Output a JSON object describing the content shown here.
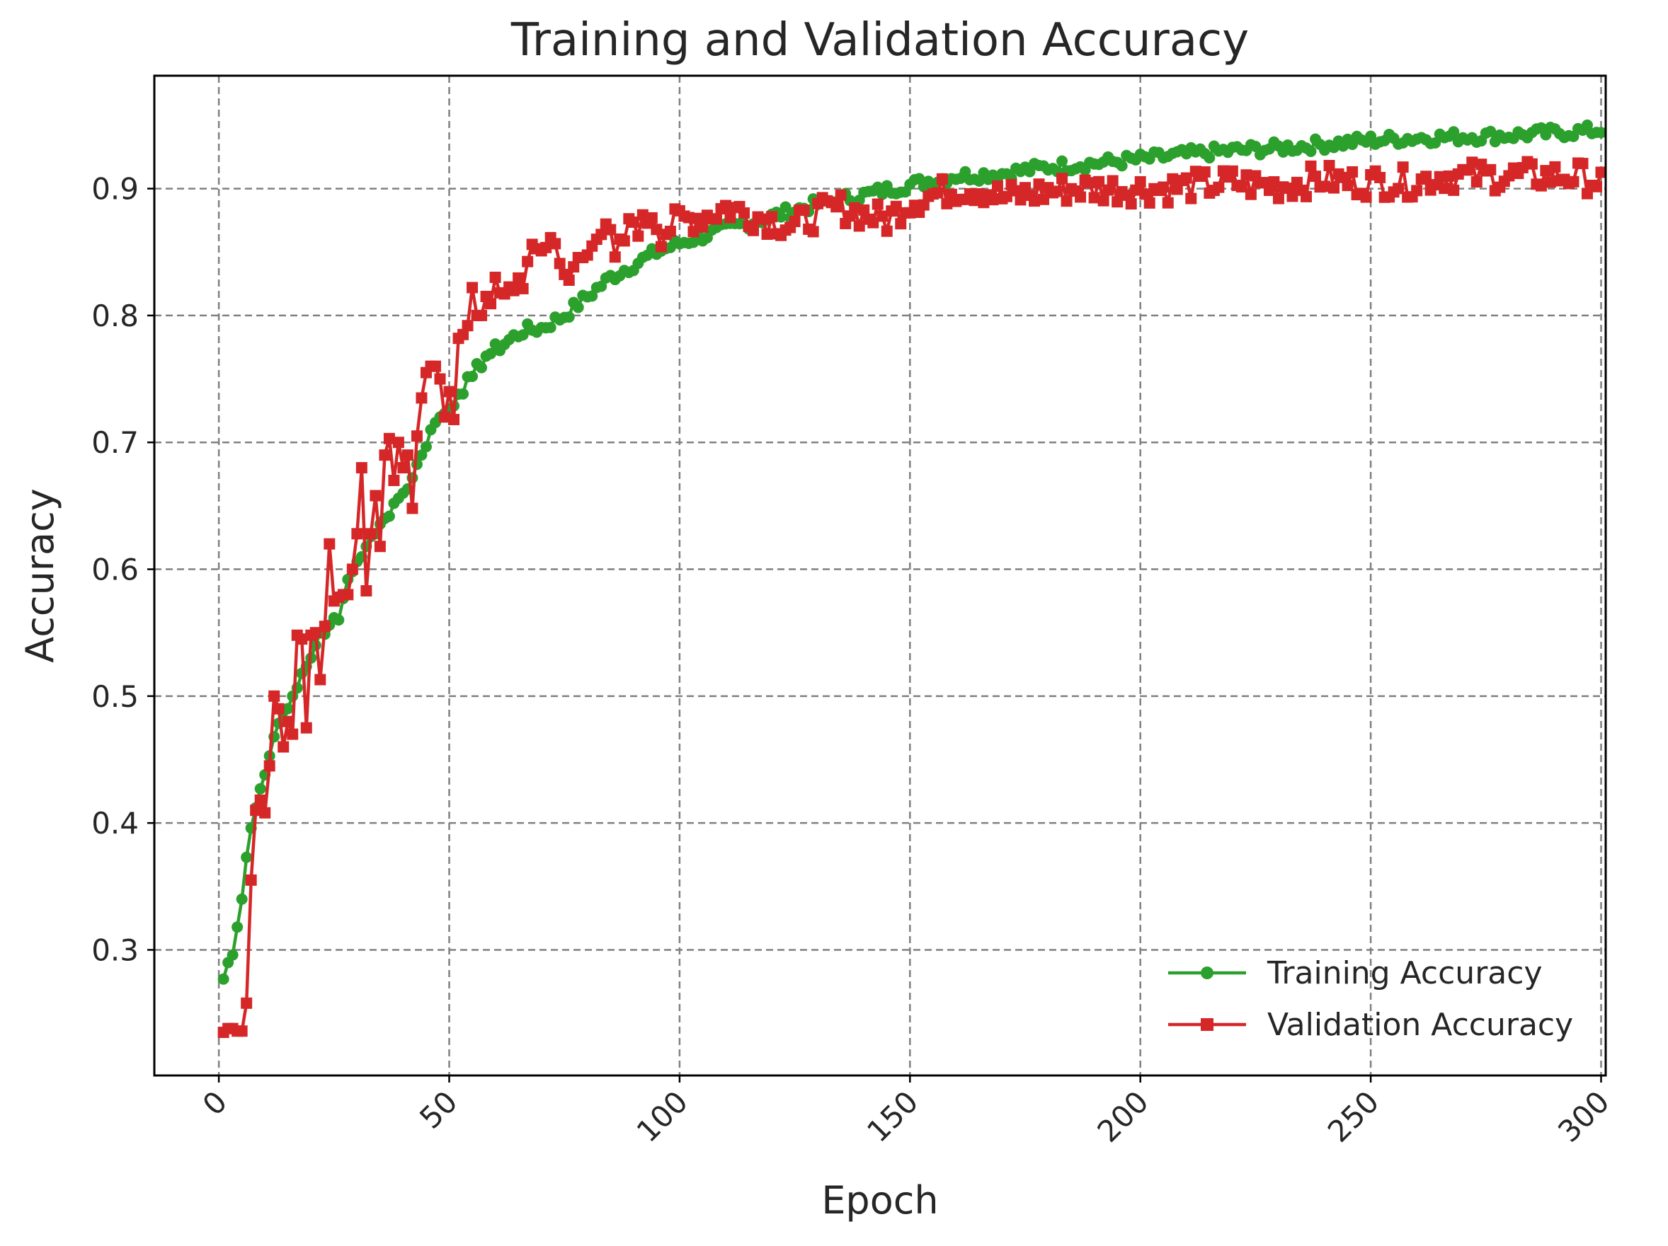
{
  "chart_data": {
    "type": "line",
    "title": "Training and Validation Accuracy",
    "xlabel": "Epoch",
    "ylabel": "Accuracy",
    "xlim": [
      -14,
      301
    ],
    "ylim": [
      0.201,
      0.989
    ],
    "xticks": [
      0,
      50,
      100,
      150,
      200,
      250,
      300
    ],
    "xtick_labels": [
      "0",
      "50",
      "100",
      "150",
      "200",
      "250",
      "300"
    ],
    "xtick_rotation": -45,
    "yticks": [
      0.3,
      0.4,
      0.5,
      0.6,
      0.7,
      0.8,
      0.9
    ],
    "ytick_labels": [
      "0.3",
      "0.4",
      "0.5",
      "0.6",
      "0.7",
      "0.8",
      "0.9"
    ],
    "grid": true,
    "legend_position": "lower-right",
    "series": [
      {
        "name": "Training Accuracy",
        "color": "#2ca02c",
        "marker": "circle",
        "anchors": [
          [
            1,
            0.277
          ],
          [
            2,
            0.29
          ],
          [
            3,
            0.296
          ],
          [
            4,
            0.318
          ],
          [
            5,
            0.34
          ],
          [
            6,
            0.373
          ],
          [
            7,
            0.396
          ],
          [
            8,
            0.412
          ],
          [
            9,
            0.427
          ],
          [
            10,
            0.438
          ],
          [
            12,
            0.468
          ],
          [
            14,
            0.488
          ],
          [
            16,
            0.5
          ],
          [
            18,
            0.518
          ],
          [
            20,
            0.53
          ],
          [
            22,
            0.55
          ],
          [
            24,
            0.556
          ],
          [
            26,
            0.56
          ],
          [
            28,
            0.592
          ],
          [
            30,
            0.606
          ],
          [
            32,
            0.618
          ],
          [
            34,
            0.628
          ],
          [
            36,
            0.64
          ],
          [
            38,
            0.652
          ],
          [
            40,
            0.66
          ],
          [
            42,
            0.672
          ],
          [
            44,
            0.69
          ],
          [
            46,
            0.71
          ],
          [
            48,
            0.72
          ],
          [
            50,
            0.726
          ],
          [
            52,
            0.738
          ],
          [
            55,
            0.752
          ],
          [
            58,
            0.768
          ],
          [
            62,
            0.778
          ],
          [
            66,
            0.788
          ],
          [
            70,
            0.79
          ],
          [
            75,
            0.8
          ],
          [
            80,
            0.815
          ],
          [
            85,
            0.83
          ],
          [
            90,
            0.84
          ],
          [
            95,
            0.85
          ],
          [
            100,
            0.857
          ],
          [
            110,
            0.868
          ],
          [
            120,
            0.878
          ],
          [
            130,
            0.888
          ],
          [
            140,
            0.895
          ],
          [
            150,
            0.903
          ],
          [
            160,
            0.91
          ],
          [
            170,
            0.912
          ],
          [
            180,
            0.917
          ],
          [
            190,
            0.92
          ],
          [
            200,
            0.923
          ],
          [
            210,
            0.927
          ],
          [
            220,
            0.93
          ],
          [
            230,
            0.932
          ],
          [
            240,
            0.935
          ],
          [
            250,
            0.938
          ],
          [
            260,
            0.94
          ],
          [
            270,
            0.941
          ],
          [
            280,
            0.942
          ],
          [
            290,
            0.944
          ],
          [
            300,
            0.946
          ]
        ],
        "noise": 0.005
      },
      {
        "name": "Validation Accuracy",
        "color": "#d62728",
        "marker": "square",
        "anchors": [
          [
            1,
            0.235
          ],
          [
            2,
            0.238
          ],
          [
            3,
            0.238
          ],
          [
            4,
            0.236
          ],
          [
            5,
            0.236
          ],
          [
            6,
            0.258
          ],
          [
            7,
            0.355
          ],
          [
            8,
            0.41
          ],
          [
            9,
            0.418
          ],
          [
            10,
            0.408
          ],
          [
            11,
            0.445
          ],
          [
            12,
            0.5
          ],
          [
            13,
            0.49
          ],
          [
            14,
            0.46
          ],
          [
            15,
            0.48
          ],
          [
            16,
            0.47
          ],
          [
            17,
            0.548
          ],
          [
            18,
            0.545
          ],
          [
            19,
            0.475
          ],
          [
            20,
            0.548
          ],
          [
            21,
            0.55
          ],
          [
            22,
            0.513
          ],
          [
            23,
            0.555
          ],
          [
            24,
            0.62
          ],
          [
            25,
            0.575
          ],
          [
            26,
            0.578
          ],
          [
            27,
            0.58
          ],
          [
            28,
            0.58
          ],
          [
            29,
            0.6
          ],
          [
            30,
            0.628
          ],
          [
            31,
            0.68
          ],
          [
            32,
            0.583
          ],
          [
            33,
            0.628
          ],
          [
            34,
            0.658
          ],
          [
            35,
            0.618
          ],
          [
            36,
            0.69
          ],
          [
            37,
            0.703
          ],
          [
            38,
            0.67
          ],
          [
            39,
            0.7
          ],
          [
            40,
            0.68
          ],
          [
            41,
            0.69
          ],
          [
            42,
            0.648
          ],
          [
            43,
            0.705
          ],
          [
            44,
            0.735
          ],
          [
            45,
            0.755
          ],
          [
            46,
            0.76
          ],
          [
            47,
            0.76
          ],
          [
            48,
            0.75
          ],
          [
            49,
            0.72
          ],
          [
            50,
            0.74
          ],
          [
            51,
            0.718
          ],
          [
            52,
            0.782
          ],
          [
            53,
            0.785
          ],
          [
            54,
            0.792
          ],
          [
            55,
            0.822
          ],
          [
            56,
            0.8
          ],
          [
            57,
            0.8
          ],
          [
            58,
            0.815
          ],
          [
            60,
            0.82
          ],
          [
            62,
            0.81
          ],
          [
            64,
            0.825
          ],
          [
            66,
            0.83
          ],
          [
            68,
            0.845
          ],
          [
            70,
            0.855
          ],
          [
            72,
            0.86
          ],
          [
            74,
            0.85
          ],
          [
            76,
            0.82
          ],
          [
            78,
            0.845
          ],
          [
            80,
            0.845
          ],
          [
            82,
            0.87
          ],
          [
            84,
            0.875
          ],
          [
            86,
            0.84
          ],
          [
            88,
            0.86
          ],
          [
            90,
            0.875
          ],
          [
            92,
            0.87
          ],
          [
            94,
            0.883
          ],
          [
            96,
            0.865
          ],
          [
            98,
            0.87
          ],
          [
            100,
            0.875
          ],
          [
            105,
            0.878
          ],
          [
            110,
            0.885
          ],
          [
            115,
            0.88
          ],
          [
            120,
            0.875
          ],
          [
            125,
            0.87
          ],
          [
            130,
            0.88
          ],
          [
            135,
            0.885
          ],
          [
            140,
            0.88
          ],
          [
            145,
            0.875
          ],
          [
            150,
            0.89
          ],
          [
            155,
            0.895
          ],
          [
            160,
            0.9
          ],
          [
            165,
            0.9
          ],
          [
            170,
            0.893
          ],
          [
            175,
            0.895
          ],
          [
            180,
            0.898
          ],
          [
            185,
            0.9
          ],
          [
            190,
            0.9
          ],
          [
            195,
            0.9
          ],
          [
            200,
            0.9
          ],
          [
            205,
            0.9
          ],
          [
            210,
            0.902
          ],
          [
            215,
            0.903
          ],
          [
            220,
            0.905
          ],
          [
            225,
            0.903
          ],
          [
            230,
            0.902
          ],
          [
            235,
            0.905
          ],
          [
            240,
            0.908
          ],
          [
            245,
            0.905
          ],
          [
            250,
            0.905
          ],
          [
            255,
            0.905
          ],
          [
            260,
            0.905
          ],
          [
            265,
            0.91
          ],
          [
            270,
            0.91
          ],
          [
            275,
            0.91
          ],
          [
            280,
            0.91
          ],
          [
            285,
            0.91
          ],
          [
            290,
            0.91
          ],
          [
            295,
            0.91
          ],
          [
            300,
            0.905
          ]
        ],
        "noise": 0.012
      }
    ]
  }
}
